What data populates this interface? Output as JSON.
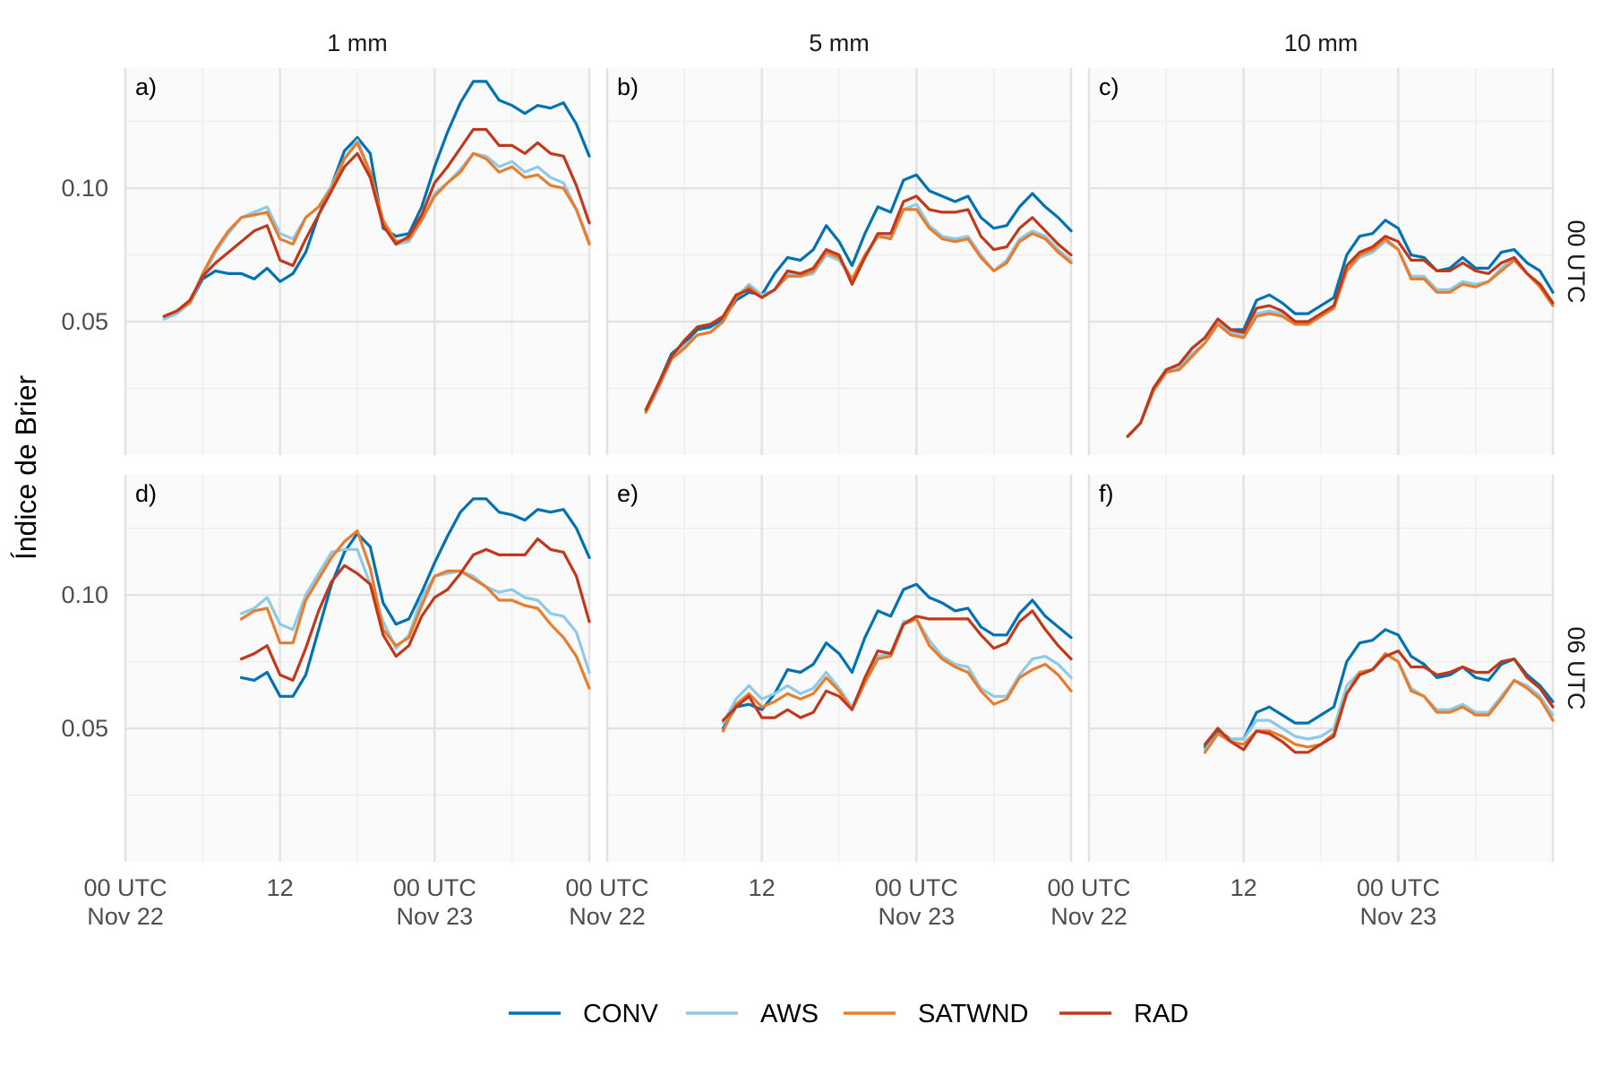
{
  "chart_data": {
    "type": "line",
    "ylabel": "Índice de Brier",
    "columns": [
      "1 mm",
      "5 mm",
      "10 mm"
    ],
    "rows": [
      "00 UTC",
      "06 UTC"
    ],
    "ylim": [
      0.0,
      0.145
    ],
    "yticks": [
      0.05,
      0.1
    ],
    "ytick_labels": [
      "0.05",
      "0.10"
    ],
    "xlim": [
      0,
      36
    ],
    "xticks": [
      0,
      12,
      24,
      36
    ],
    "xtick_labels": [
      [
        "00 UTC",
        "Nov 22"
      ],
      [
        "12",
        ""
      ],
      [
        "00 UTC",
        "Nov 23"
      ]
    ],
    "grid": true,
    "legend_position": "bottom",
    "series_names": [
      "CONV",
      "AWS",
      "SATWND",
      "RAD"
    ],
    "colors": {
      "CONV": "#0072b2",
      "AWS": "#8ecae6",
      "SATWND": "#e87d2e",
      "RAD": "#c1381b"
    },
    "panels": [
      {
        "tag": "a)",
        "row": 0,
        "col": 0,
        "x_start": 3,
        "series": {
          "CONV": [
            0.052,
            0.054,
            0.057,
            0.066,
            0.069,
            0.068,
            0.068,
            0.066,
            0.07,
            0.065,
            0.068,
            0.076,
            0.09,
            0.101,
            0.114,
            0.119,
            0.113,
            0.085,
            0.082,
            0.083,
            0.093,
            0.108,
            0.121,
            0.132,
            0.14,
            0.14,
            0.133,
            0.131,
            0.128,
            0.131,
            0.13,
            0.132,
            0.124,
            0.112
          ],
          "AWS": [
            0.051,
            0.053,
            0.057,
            0.067,
            0.076,
            0.083,
            0.089,
            0.091,
            0.093,
            0.083,
            0.081,
            0.089,
            0.093,
            0.101,
            0.111,
            0.118,
            0.106,
            0.087,
            0.079,
            0.08,
            0.088,
            0.098,
            0.102,
            0.107,
            0.113,
            0.112,
            0.108,
            0.11,
            0.106,
            0.108,
            0.104,
            0.102,
            0.092,
            0.08
          ],
          "SATWND": [
            0.052,
            0.054,
            0.057,
            0.068,
            0.077,
            0.084,
            0.089,
            0.09,
            0.091,
            0.081,
            0.079,
            0.089,
            0.093,
            0.1,
            0.111,
            0.117,
            0.106,
            0.088,
            0.08,
            0.081,
            0.088,
            0.097,
            0.102,
            0.106,
            0.113,
            0.111,
            0.106,
            0.108,
            0.104,
            0.105,
            0.101,
            0.1,
            0.092,
            0.079
          ],
          "RAD": [
            0.052,
            0.054,
            0.058,
            0.067,
            0.072,
            0.076,
            0.08,
            0.084,
            0.086,
            0.073,
            0.071,
            0.081,
            0.09,
            0.099,
            0.108,
            0.113,
            0.104,
            0.086,
            0.079,
            0.082,
            0.09,
            0.102,
            0.108,
            0.115,
            0.122,
            0.122,
            0.116,
            0.116,
            0.113,
            0.117,
            0.113,
            0.112,
            0.101,
            0.087
          ]
        }
      },
      {
        "tag": "b)",
        "row": 0,
        "col": 1,
        "x_start": 3,
        "series": {
          "CONV": [
            0.017,
            0.027,
            0.038,
            0.042,
            0.047,
            0.048,
            0.051,
            0.058,
            0.061,
            0.06,
            0.068,
            0.074,
            0.073,
            0.077,
            0.086,
            0.08,
            0.071,
            0.083,
            0.093,
            0.091,
            0.103,
            0.105,
            0.099,
            0.097,
            0.095,
            0.097,
            0.089,
            0.085,
            0.086,
            0.093,
            0.098,
            0.093,
            0.089,
            0.084
          ],
          "AWS": [
            0.016,
            0.025,
            0.036,
            0.041,
            0.045,
            0.046,
            0.05,
            0.059,
            0.064,
            0.06,
            0.062,
            0.068,
            0.067,
            0.068,
            0.075,
            0.073,
            0.066,
            0.074,
            0.082,
            0.082,
            0.092,
            0.094,
            0.086,
            0.082,
            0.081,
            0.082,
            0.075,
            0.069,
            0.073,
            0.081,
            0.084,
            0.082,
            0.077,
            0.073
          ],
          "SATWND": [
            0.016,
            0.026,
            0.036,
            0.04,
            0.045,
            0.046,
            0.05,
            0.059,
            0.063,
            0.059,
            0.062,
            0.067,
            0.067,
            0.069,
            0.076,
            0.074,
            0.066,
            0.075,
            0.082,
            0.081,
            0.092,
            0.092,
            0.085,
            0.081,
            0.08,
            0.081,
            0.074,
            0.069,
            0.072,
            0.08,
            0.083,
            0.081,
            0.076,
            0.072
          ],
          "RAD": [
            0.017,
            0.027,
            0.037,
            0.043,
            0.048,
            0.049,
            0.052,
            0.06,
            0.062,
            0.059,
            0.062,
            0.069,
            0.068,
            0.07,
            0.077,
            0.075,
            0.064,
            0.074,
            0.083,
            0.083,
            0.095,
            0.097,
            0.092,
            0.091,
            0.091,
            0.092,
            0.082,
            0.077,
            0.078,
            0.085,
            0.089,
            0.084,
            0.079,
            0.075
          ]
        }
      },
      {
        "tag": "c)",
        "row": 0,
        "col": 2,
        "x_start": 3,
        "series": {
          "CONV": [
            0.007,
            0.012,
            0.025,
            0.032,
            0.034,
            0.04,
            0.044,
            0.051,
            0.047,
            0.047,
            0.058,
            0.06,
            0.057,
            0.053,
            0.053,
            0.056,
            0.059,
            0.075,
            0.082,
            0.083,
            0.088,
            0.085,
            0.075,
            0.074,
            0.069,
            0.07,
            0.074,
            0.07,
            0.07,
            0.076,
            0.077,
            0.072,
            0.069,
            0.061
          ],
          "AWS": [
            0.007,
            0.012,
            0.024,
            0.031,
            0.033,
            0.038,
            0.042,
            0.05,
            0.046,
            0.045,
            0.053,
            0.054,
            0.053,
            0.049,
            0.049,
            0.052,
            0.056,
            0.069,
            0.074,
            0.076,
            0.08,
            0.077,
            0.067,
            0.067,
            0.062,
            0.062,
            0.065,
            0.064,
            0.065,
            0.07,
            0.074,
            0.068,
            0.064,
            0.056
          ],
          "SATWND": [
            0.007,
            0.012,
            0.024,
            0.031,
            0.032,
            0.037,
            0.042,
            0.049,
            0.045,
            0.044,
            0.052,
            0.053,
            0.052,
            0.049,
            0.049,
            0.052,
            0.055,
            0.069,
            0.075,
            0.077,
            0.081,
            0.077,
            0.066,
            0.066,
            0.061,
            0.061,
            0.064,
            0.063,
            0.065,
            0.069,
            0.073,
            0.068,
            0.063,
            0.056
          ],
          "RAD": [
            0.007,
            0.012,
            0.025,
            0.032,
            0.034,
            0.04,
            0.044,
            0.051,
            0.047,
            0.046,
            0.055,
            0.056,
            0.054,
            0.05,
            0.05,
            0.053,
            0.056,
            0.071,
            0.076,
            0.078,
            0.082,
            0.08,
            0.073,
            0.073,
            0.069,
            0.069,
            0.072,
            0.069,
            0.068,
            0.072,
            0.074,
            0.068,
            0.064,
            0.057
          ]
        }
      },
      {
        "tag": "d)",
        "row": 1,
        "col": 0,
        "x_start": 9,
        "series": {
          "CONV": [
            0.069,
            0.068,
            0.071,
            0.062,
            0.062,
            0.07,
            0.087,
            0.104,
            0.116,
            0.123,
            0.118,
            0.097,
            0.089,
            0.091,
            0.101,
            0.112,
            0.122,
            0.131,
            0.136,
            0.136,
            0.131,
            0.13,
            0.128,
            0.132,
            0.131,
            0.132,
            0.125,
            0.114
          ],
          "AWS": [
            0.093,
            0.095,
            0.099,
            0.089,
            0.087,
            0.1,
            0.108,
            0.116,
            0.117,
            0.117,
            0.104,
            0.09,
            0.08,
            0.085,
            0.099,
            0.107,
            0.108,
            0.109,
            0.107,
            0.103,
            0.101,
            0.102,
            0.099,
            0.098,
            0.093,
            0.092,
            0.086,
            0.071
          ],
          "SATWND": [
            0.091,
            0.094,
            0.095,
            0.082,
            0.082,
            0.098,
            0.106,
            0.114,
            0.12,
            0.124,
            0.11,
            0.087,
            0.081,
            0.084,
            0.096,
            0.107,
            0.109,
            0.109,
            0.106,
            0.103,
            0.098,
            0.098,
            0.096,
            0.095,
            0.089,
            0.084,
            0.077,
            0.065
          ],
          "RAD": [
            0.076,
            0.078,
            0.081,
            0.07,
            0.068,
            0.08,
            0.094,
            0.105,
            0.111,
            0.108,
            0.104,
            0.085,
            0.077,
            0.081,
            0.092,
            0.099,
            0.102,
            0.108,
            0.115,
            0.117,
            0.115,
            0.115,
            0.115,
            0.121,
            0.117,
            0.116,
            0.107,
            0.09
          ]
        }
      },
      {
        "tag": "e)",
        "row": 1,
        "col": 1,
        "x_start": 9,
        "series": {
          "CONV": [
            0.05,
            0.058,
            0.059,
            0.057,
            0.063,
            0.072,
            0.071,
            0.074,
            0.082,
            0.078,
            0.071,
            0.084,
            0.094,
            0.092,
            0.102,
            0.104,
            0.099,
            0.097,
            0.094,
            0.095,
            0.088,
            0.085,
            0.085,
            0.093,
            0.098,
            0.092,
            0.088,
            0.084
          ],
          "AWS": [
            0.052,
            0.061,
            0.066,
            0.061,
            0.063,
            0.066,
            0.063,
            0.065,
            0.071,
            0.065,
            0.058,
            0.068,
            0.077,
            0.078,
            0.09,
            0.091,
            0.083,
            0.077,
            0.074,
            0.073,
            0.065,
            0.062,
            0.062,
            0.07,
            0.076,
            0.077,
            0.074,
            0.069
          ],
          "SATWND": [
            0.049,
            0.059,
            0.063,
            0.058,
            0.06,
            0.063,
            0.061,
            0.063,
            0.069,
            0.064,
            0.057,
            0.067,
            0.076,
            0.077,
            0.089,
            0.091,
            0.081,
            0.076,
            0.073,
            0.071,
            0.064,
            0.059,
            0.061,
            0.069,
            0.072,
            0.074,
            0.07,
            0.064
          ],
          "RAD": [
            0.053,
            0.058,
            0.062,
            0.054,
            0.054,
            0.057,
            0.054,
            0.056,
            0.064,
            0.062,
            0.057,
            0.069,
            0.079,
            0.078,
            0.089,
            0.092,
            0.091,
            0.091,
            0.091,
            0.091,
            0.085,
            0.08,
            0.082,
            0.09,
            0.094,
            0.087,
            0.081,
            0.076
          ]
        }
      },
      {
        "tag": "f)",
        "row": 1,
        "col": 2,
        "x_start": 9,
        "series": {
          "CONV": [
            0.043,
            0.049,
            0.046,
            0.046,
            0.056,
            0.058,
            0.055,
            0.052,
            0.052,
            0.055,
            0.058,
            0.075,
            0.082,
            0.083,
            0.087,
            0.085,
            0.077,
            0.074,
            0.069,
            0.07,
            0.073,
            0.069,
            0.068,
            0.074,
            0.076,
            0.07,
            0.066,
            0.06
          ],
          "AWS": [
            0.042,
            0.048,
            0.046,
            0.046,
            0.053,
            0.053,
            0.05,
            0.047,
            0.046,
            0.047,
            0.05,
            0.066,
            0.071,
            0.072,
            0.078,
            0.075,
            0.065,
            0.062,
            0.057,
            0.057,
            0.059,
            0.056,
            0.056,
            0.062,
            0.068,
            0.066,
            0.062,
            0.055
          ],
          "SATWND": [
            0.041,
            0.048,
            0.045,
            0.044,
            0.049,
            0.049,
            0.047,
            0.044,
            0.043,
            0.044,
            0.048,
            0.063,
            0.071,
            0.072,
            0.078,
            0.075,
            0.064,
            0.062,
            0.056,
            0.056,
            0.058,
            0.055,
            0.055,
            0.061,
            0.068,
            0.065,
            0.061,
            0.053
          ],
          "RAD": [
            0.044,
            0.05,
            0.045,
            0.042,
            0.049,
            0.048,
            0.045,
            0.041,
            0.041,
            0.044,
            0.047,
            0.063,
            0.07,
            0.072,
            0.077,
            0.079,
            0.073,
            0.073,
            0.07,
            0.071,
            0.073,
            0.071,
            0.071,
            0.075,
            0.076,
            0.069,
            0.065,
            0.058
          ]
        }
      }
    ]
  }
}
